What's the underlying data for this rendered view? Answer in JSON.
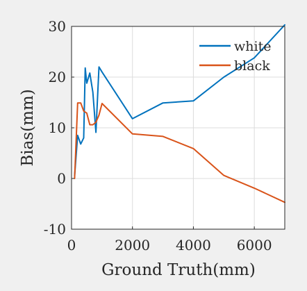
{
  "chart_data": {
    "type": "line",
    "xlabel": "Ground Truth(mm)",
    "ylabel": "Bias(mm)",
    "xlim": [
      0,
      7000
    ],
    "ylim": [
      -10,
      30
    ],
    "xticks": [
      0,
      2000,
      4000,
      6000
    ],
    "xtick_labels": [
      "0",
      "2000",
      "4000",
      "6000"
    ],
    "yticks": [
      -10,
      0,
      10,
      20,
      30
    ],
    "ytick_labels": [
      "-10",
      "0",
      "10",
      "20",
      "30"
    ],
    "grid": true,
    "legend_position": "top-right",
    "series": [
      {
        "name": "white",
        "color": "#0072bd",
        "x": [
          100,
          200,
          300,
          400,
          450,
          500,
          600,
          700,
          800,
          900,
          1000,
          2000,
          3000,
          4000,
          5000,
          6000,
          7000
        ],
        "y": [
          0.5,
          8.5,
          6.8,
          8.0,
          21.8,
          18.8,
          20.8,
          17.0,
          9.1,
          22.0,
          21.0,
          11.8,
          14.9,
          15.3,
          20.0,
          23.8,
          30.3
        ]
      },
      {
        "name": "black",
        "color": "#d95319",
        "x": [
          100,
          200,
          300,
          400,
          500,
          600,
          700,
          800,
          900,
          1000,
          2000,
          3000,
          4000,
          5000,
          6000,
          7000
        ],
        "y": [
          0.0,
          14.9,
          14.9,
          13.3,
          12.9,
          10.6,
          10.6,
          11.1,
          12.5,
          14.8,
          8.8,
          8.3,
          5.9,
          0.6,
          -1.9,
          -4.7
        ]
      }
    ]
  }
}
